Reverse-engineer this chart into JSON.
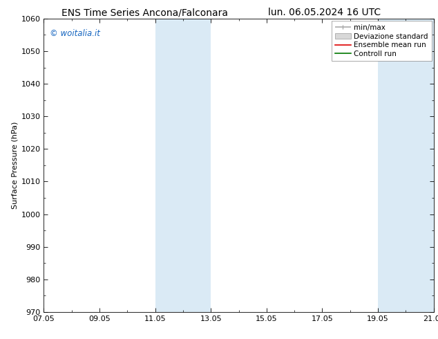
{
  "title_left": "ENS Time Series Ancona/Falconara",
  "title_right": "lun. 06.05.2024 16 UTC",
  "ylabel": "Surface Pressure (hPa)",
  "ylim": [
    970,
    1060
  ],
  "yticks": [
    970,
    980,
    990,
    1000,
    1010,
    1020,
    1030,
    1040,
    1050,
    1060
  ],
  "xtick_labels": [
    "07.05",
    "09.05",
    "11.05",
    "13.05",
    "15.05",
    "17.05",
    "19.05",
    "21.05"
  ],
  "xtick_positions": [
    0,
    2,
    4,
    6,
    8,
    10,
    12,
    14
  ],
  "xlim": [
    0,
    14
  ],
  "shaded_regions": [
    {
      "start": 4,
      "end": 6
    },
    {
      "start": 12,
      "end": 14
    }
  ],
  "shade_color": "#daeaf5",
  "watermark": "© woitalia.it",
  "watermark_color": "#1565c0",
  "legend_entries": [
    "min/max",
    "Deviazione standard",
    "Ensemble mean run",
    "Controll run"
  ],
  "legend_line_colors": [
    "#aaaaaa",
    "#cccccc",
    "#dd0000",
    "#007700"
  ],
  "background_color": "#ffffff",
  "title_fontsize": 10,
  "ylabel_fontsize": 8,
  "tick_fontsize": 8,
  "legend_fontsize": 7.5,
  "watermark_fontsize": 8.5
}
